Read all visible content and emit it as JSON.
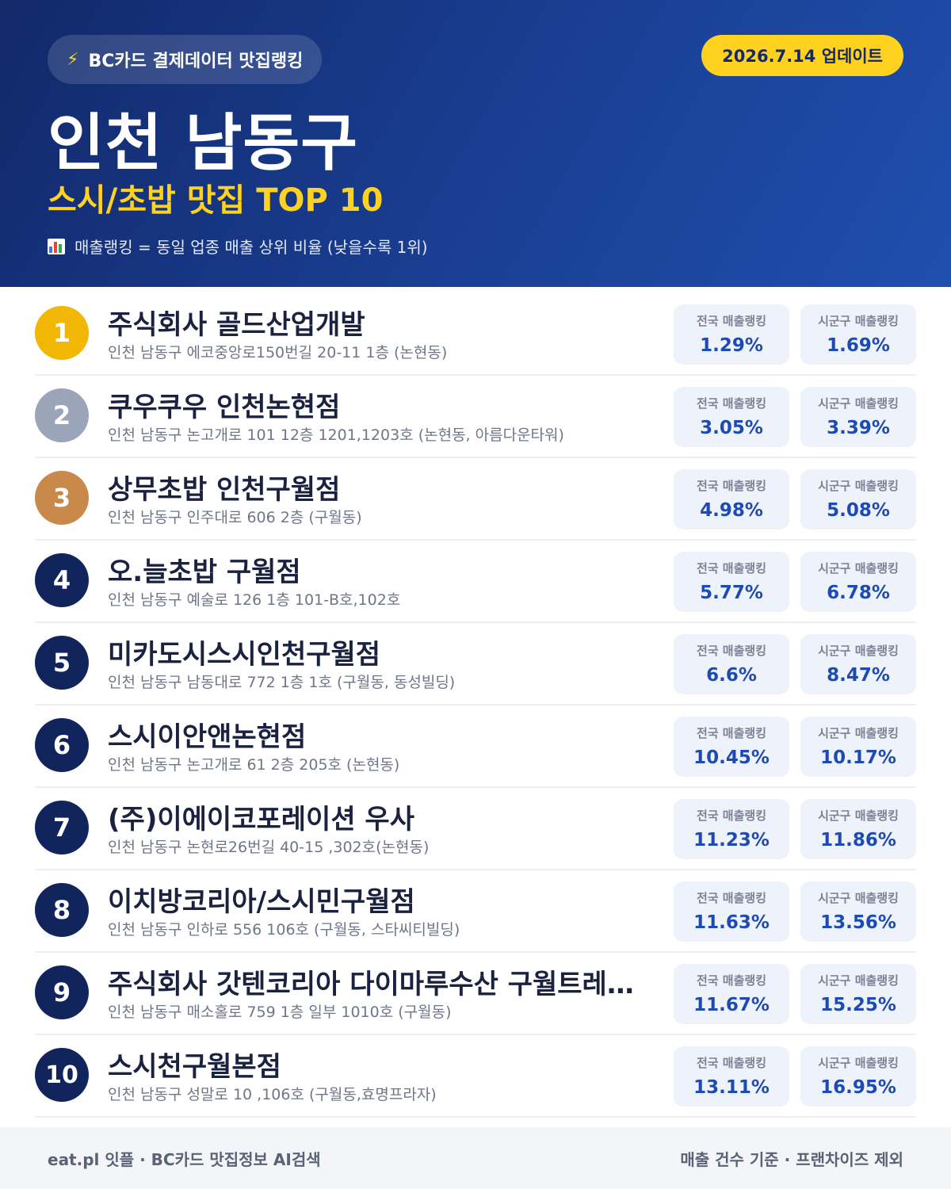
{
  "header": {
    "badge_text": "BC카드 결제데이터 맛집랭킹",
    "update_text": "2026.7.14 업데이트",
    "title": "인천 남동구",
    "subtitle": "스시/초밥 맛집 TOP 10",
    "note": "매출랭킹 = 동일 업종 매출 상위 비율 (낮을수록 1위)"
  },
  "stat_labels": {
    "national": "전국 매출랭킹",
    "district": "시군구 매출랭킹"
  },
  "restaurants": [
    {
      "rank": "1",
      "name": "주식회사 골드산업개발",
      "address": "인천 남동구 에코중앙로150번길 20-11 1층 (논현동)",
      "national": "1.29%",
      "district": "1.69%"
    },
    {
      "rank": "2",
      "name": "쿠우쿠우 인천논현점",
      "address": "인천 남동구 논고개로 101 12층 1201,1203호 (논현동, 아름다운타워)",
      "national": "3.05%",
      "district": "3.39%"
    },
    {
      "rank": "3",
      "name": "상무초밥 인천구월점",
      "address": "인천 남동구 인주대로 606 2층 (구월동)",
      "national": "4.98%",
      "district": "5.08%"
    },
    {
      "rank": "4",
      "name": "오.늘초밥 구월점",
      "address": "인천 남동구 예술로 126 1층 101-B호,102호",
      "national": "5.77%",
      "district": "6.78%"
    },
    {
      "rank": "5",
      "name": "미카도시스시인천구월점",
      "address": "인천 남동구 남동대로 772 1층 1호 (구월동, 동성빌딩)",
      "national": "6.6%",
      "district": "8.47%"
    },
    {
      "rank": "6",
      "name": "스시이안앤논현점",
      "address": "인천 남동구 논고개로 61 2층 205호 (논현동)",
      "national": "10.45%",
      "district": "10.17%"
    },
    {
      "rank": "7",
      "name": "(주)이에이코포레이션 우사",
      "address": "인천 남동구 논현로26번길 40-15 ,302호(논현동)",
      "national": "11.23%",
      "district": "11.86%"
    },
    {
      "rank": "8",
      "name": "이치방코리아/스시민구월점",
      "address": "인천 남동구 인하로 556 106호 (구월동, 스타씨티빌딩)",
      "national": "11.63%",
      "district": "13.56%"
    },
    {
      "rank": "9",
      "name": "주식회사 갓텐코리아 다이마루수산 구월트레이…",
      "address": "인천 남동구 매소홀로 759 1층 일부 1010호 (구월동)",
      "national": "11.67%",
      "district": "15.25%"
    },
    {
      "rank": "10",
      "name": "스시천구월본점",
      "address": "인천 남동구 성말로 10 ,106호 (구월동,효명프라자)",
      "national": "13.11%",
      "district": "16.95%"
    }
  ],
  "footer": {
    "left": "eat.pl 잇플 · BC카드 맛집정보 AI검색",
    "right": "매출 건수 기준 · 프랜차이즈 제외"
  },
  "colors": {
    "header_bg": "#1a3f94",
    "accent_yellow": "#ffd21f",
    "gold": "#f2b705",
    "silver": "#9aa5ba",
    "bronze": "#c8894a",
    "navy": "#12245c",
    "stat_value": "#1d4bb0"
  }
}
